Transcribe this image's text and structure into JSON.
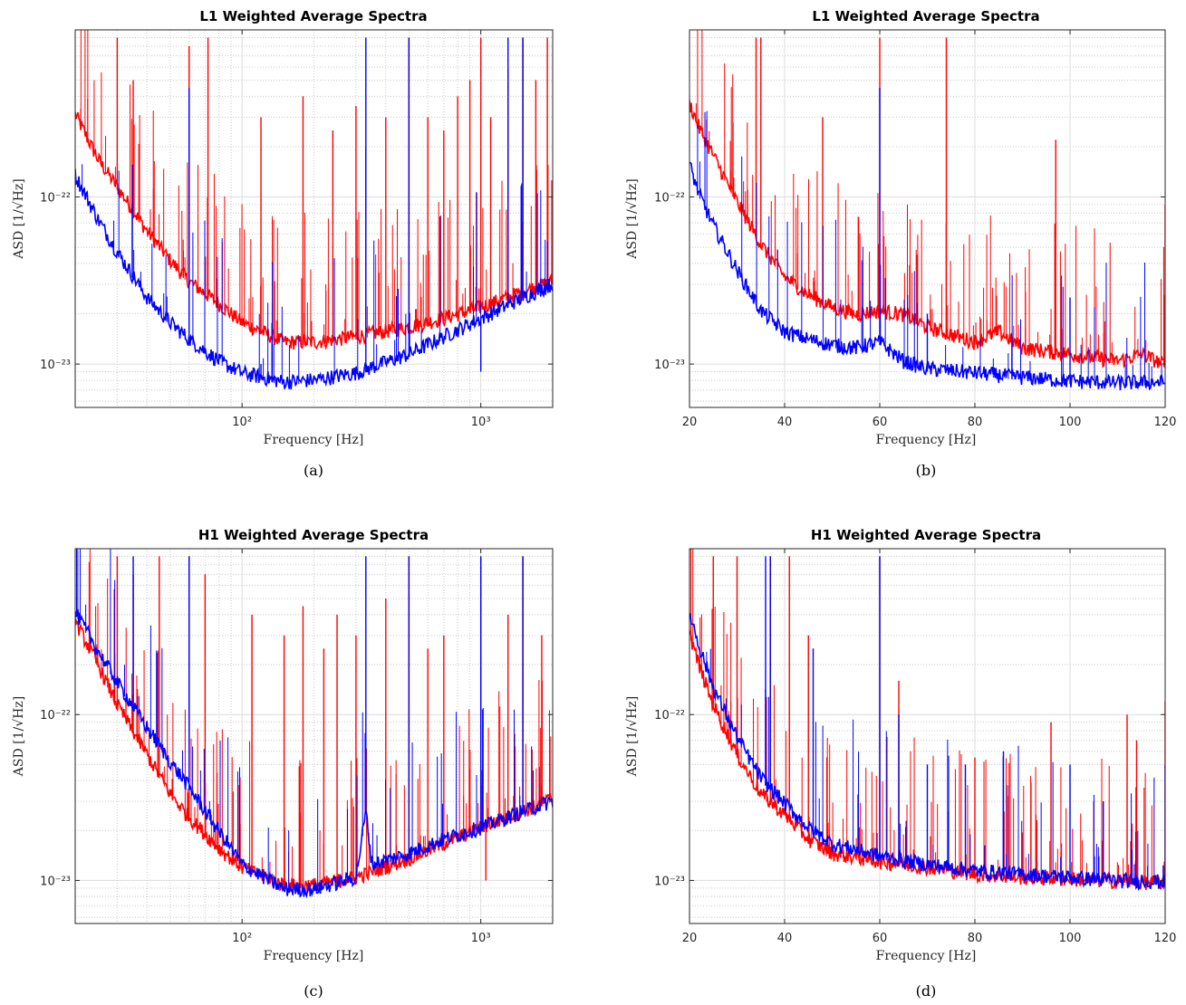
{
  "figure": {
    "colors": {
      "red": "#ff0000",
      "blue": "#0000ff",
      "grid_major": "#dcdcdc",
      "grid_minor": "#c8c8c8",
      "axis": "#262626"
    }
  },
  "chart_data": [
    {
      "type": "line",
      "title": "L1 Weighted Average Spectra",
      "xlabel": "Frequency [Hz]",
      "ylabel": "ASD [1/√Hz]",
      "caption": "(a)",
      "xscale": "log",
      "yscale": "log",
      "xlim": [
        20,
        2000
      ],
      "ylim": [
        5.5e-24,
        1e-21
      ],
      "xticks": [
        100,
        1000
      ],
      "xtick_labels": [
        "10²",
        "10³"
      ],
      "yticks": [
        1e-23,
        1e-22
      ],
      "ytick_labels": [
        "10⁻²³",
        "10⁻²²"
      ],
      "grid": true,
      "series": [
        {
          "color": "red",
          "x": [
            20,
            25,
            30,
            40,
            50,
            60,
            80,
            100,
            150,
            200,
            300,
            500,
            700,
            1000,
            1500,
            2000
          ],
          "y": [
            3e-22,
            1.6e-22,
            1.1e-22,
            6e-23,
            4e-23,
            3e-23,
            2.2e-23,
            1.7e-23,
            1.3e-23,
            1.3e-23,
            1.4e-23,
            1.6e-23,
            1.8e-23,
            2.1e-23,
            2.6e-23,
            3e-23
          ],
          "spikes": [
            [
              30,
              9e-22
            ],
            [
              35,
              5e-22
            ],
            [
              60,
              8e-22
            ],
            [
              72,
              9e-22
            ],
            [
              120,
              3e-22
            ],
            [
              180,
              4e-22
            ],
            [
              240,
              2.5e-22
            ],
            [
              300,
              3.5e-22
            ],
            [
              330,
              2e-22
            ],
            [
              400,
              3e-22
            ],
            [
              500,
              9e-22
            ],
            [
              600,
              3e-22
            ],
            [
              700,
              2.5e-22
            ],
            [
              800,
              4e-22
            ],
            [
              900,
              5e-22
            ],
            [
              1000,
              9e-22
            ],
            [
              1100,
              3e-22
            ],
            [
              1300,
              6e-22
            ],
            [
              1500,
              9e-22
            ],
            [
              1700,
              5e-22
            ],
            [
              1900,
              9e-22
            ]
          ]
        },
        {
          "color": "blue",
          "x": [
            20,
            25,
            30,
            40,
            50,
            60,
            80,
            100,
            150,
            200,
            300,
            500,
            700,
            1000,
            1500,
            2000
          ],
          "y": [
            1.3e-22,
            7e-23,
            4.5e-23,
            2.4e-23,
            1.7e-23,
            1.35e-23,
            1e-23,
            8.5e-24,
            7.5e-24,
            7.7e-24,
            8.5e-24,
            1.1e-23,
            1.4e-23,
            1.8e-23,
            2.4e-23,
            2.9e-23
          ],
          "spikes": [
            [
              60,
              4.5e-22
            ],
            [
              120,
              1e-23
            ],
            [
              330,
              9e-22
            ],
            [
              500,
              9e-22
            ],
            [
              1000,
              9e-24
            ],
            [
              1300,
              9e-22
            ],
            [
              1500,
              9e-22
            ]
          ]
        }
      ]
    },
    {
      "type": "line",
      "title": "L1 Weighted Average Spectra",
      "xlabel": "Frequency [Hz]",
      "ylabel": "ASD [1/√Hz]",
      "caption": "(b)",
      "xscale": "linear",
      "yscale": "log",
      "xlim": [
        20,
        120
      ],
      "ylim": [
        5.5e-24,
        1e-21
      ],
      "xticks": [
        20,
        40,
        60,
        80,
        100,
        120
      ],
      "xtick_labels": [
        "20",
        "40",
        "60",
        "80",
        "100",
        "120"
      ],
      "yticks": [
        1e-23,
        1e-22
      ],
      "ytick_labels": [
        "10⁻²³",
        "10⁻²²"
      ],
      "grid": true,
      "series": [
        {
          "color": "red",
          "x": [
            20,
            22,
            25,
            30,
            35,
            40,
            45,
            50,
            55,
            60,
            65,
            70,
            80,
            85,
            90,
            100,
            110,
            115,
            120
          ],
          "y": [
            3.5e-22,
            2.5e-22,
            1.7e-22,
            9e-23,
            5e-23,
            3.2e-23,
            2.5e-23,
            2.1e-23,
            1.9e-23,
            2e-23,
            1.9e-23,
            1.6e-23,
            1.3e-23,
            1.5e-23,
            1.2e-23,
            1.1e-23,
            1e-23,
            1.1e-23,
            9.5e-24
          ],
          "spikes": [
            [
              34,
              9e-22
            ],
            [
              35,
              9e-22
            ],
            [
              48,
              3e-22
            ],
            [
              60,
              9e-22
            ],
            [
              74,
              9e-22
            ],
            [
              97,
              2.2e-22
            ],
            [
              120,
              9e-23
            ]
          ]
        },
        {
          "color": "blue",
          "x": [
            20,
            22,
            25,
            30,
            35,
            40,
            45,
            50,
            55,
            60,
            65,
            70,
            80,
            90,
            100,
            110,
            120
          ],
          "y": [
            1.5e-22,
            1e-22,
            6.5e-23,
            3.5e-23,
            2e-23,
            1.5e-23,
            1.35e-23,
            1.25e-23,
            1.2e-23,
            1.3e-23,
            1e-23,
            9e-24,
            8.5e-24,
            8e-24,
            7.6e-24,
            7.4e-24,
            7.5e-24
          ],
          "spikes": [
            [
              60,
              4.5e-22
            ],
            [
              70,
              2e-23
            ],
            [
              100,
              2.5e-23
            ]
          ]
        }
      ]
    },
    {
      "type": "line",
      "title": "H1 Weighted Average Spectra",
      "xlabel": "Frequency [Hz]",
      "ylabel": "ASD [1/√Hz]",
      "caption": "(c)",
      "xscale": "log",
      "yscale": "log",
      "xlim": [
        20,
        2000
      ],
      "ylim": [
        5.5e-24,
        1e-21
      ],
      "xticks": [
        100,
        1000
      ],
      "xtick_labels": [
        "10²",
        "10³"
      ],
      "yticks": [
        1e-23,
        1e-22
      ],
      "ytick_labels": [
        "10⁻²³",
        "10⁻²²"
      ],
      "grid": true,
      "series": [
        {
          "color": "red",
          "x": [
            20,
            25,
            30,
            40,
            50,
            60,
            80,
            100,
            150,
            200,
            300,
            500,
            700,
            1000,
            1500,
            2000
          ],
          "y": [
            3.5e-22,
            1.9e-22,
            1.1e-22,
            5.5e-23,
            3.2e-23,
            2.3e-23,
            1.5e-23,
            1.15e-23,
            9e-24,
            9e-24,
            1e-23,
            1.3e-23,
            1.6e-23,
            2e-23,
            2.5e-23,
            3e-23
          ],
          "spikes": [
            [
              30,
              9e-22
            ],
            [
              35,
              7e-22
            ],
            [
              45,
              9e-22
            ],
            [
              60,
              9e-22
            ],
            [
              70,
              7e-22
            ],
            [
              110,
              4e-22
            ],
            [
              150,
              3e-22
            ],
            [
              180,
              4.5e-22
            ],
            [
              220,
              2.5e-22
            ],
            [
              250,
              4e-22
            ],
            [
              300,
              3e-22
            ],
            [
              400,
              5e-22
            ],
            [
              500,
              9e-22
            ],
            [
              600,
              2.5e-22
            ],
            [
              700,
              3e-22
            ],
            [
              1000,
              9e-22
            ],
            [
              1050,
              1e-23
            ],
            [
              1300,
              4e-22
            ],
            [
              1500,
              9e-22
            ],
            [
              1800,
              3e-22
            ]
          ]
        },
        {
          "color": "blue",
          "x": [
            20,
            25,
            30,
            40,
            50,
            60,
            80,
            100,
            150,
            200,
            300,
            330,
            350,
            500,
            700,
            1000,
            1500,
            2000
          ],
          "y": [
            4e-22,
            2.3e-22,
            1.5e-22,
            8e-23,
            5e-23,
            3.5e-23,
            1.9e-23,
            1.2e-23,
            8.5e-24,
            8.5e-24,
            1e-23,
            2.5e-23,
            1.2e-23,
            1.4e-23,
            1.7e-23,
            2e-23,
            2.5e-23,
            2.9e-23
          ],
          "spikes": [
            [
              35,
              9e-22
            ],
            [
              60,
              9e-22
            ],
            [
              330,
              9e-22
            ],
            [
              500,
              9e-22
            ],
            [
              1000,
              9e-22
            ],
            [
              1500,
              9e-22
            ]
          ]
        }
      ]
    },
    {
      "type": "line",
      "title": "H1 Weighted Average Spectra",
      "xlabel": "Frequency [Hz]",
      "ylabel": "ASD [1/√Hz]",
      "caption": "(d)",
      "xscale": "linear",
      "yscale": "log",
      "xlim": [
        20,
        120
      ],
      "ylim": [
        5.5e-24,
        1e-21
      ],
      "xticks": [
        20,
        40,
        60,
        80,
        100,
        120
      ],
      "xtick_labels": [
        "20",
        "40",
        "60",
        "80",
        "100",
        "120"
      ],
      "yticks": [
        1e-23,
        1e-22
      ],
      "ytick_labels": [
        "10⁻²³",
        "10⁻²²"
      ],
      "grid": true,
      "series": [
        {
          "color": "red",
          "x": [
            20,
            22,
            25,
            30,
            35,
            40,
            45,
            50,
            60,
            70,
            80,
            90,
            100,
            110,
            120
          ],
          "y": [
            3e-22,
            1.9e-22,
            1.1e-22,
            5.5e-23,
            3.2e-23,
            2.4e-23,
            1.7e-23,
            1.4e-23,
            1.25e-23,
            1.15e-23,
            1.05e-23,
            1e-23,
            9.8e-24,
            9.5e-24,
            9.3e-24
          ],
          "spikes": [
            [
              25,
              9e-22
            ],
            [
              30,
              9e-22
            ],
            [
              37,
              9e-22
            ],
            [
              41,
              9e-22
            ],
            [
              45,
              3e-22
            ],
            [
              60,
              9e-22
            ],
            [
              64,
              1.6e-22
            ],
            [
              80,
              5.5e-23
            ],
            [
              96,
              9e-23
            ],
            [
              105,
              3e-23
            ],
            [
              112,
              1e-22
            ],
            [
              114,
              7e-23
            ],
            [
              120,
              1.2e-22
            ]
          ]
        },
        {
          "color": "blue",
          "x": [
            20,
            22,
            25,
            30,
            35,
            40,
            45,
            50,
            60,
            70,
            80,
            90,
            100,
            110,
            120
          ],
          "y": [
            4e-22,
            2.5e-22,
            1.4e-22,
            7e-23,
            4e-23,
            2.8e-23,
            2e-23,
            1.6e-23,
            1.35e-23,
            1.2e-23,
            1.1e-23,
            1.05e-23,
            1e-23,
            9.6e-24,
            9.4e-24
          ],
          "spikes": [
            [
              36,
              9e-22
            ],
            [
              37,
              9e-22
            ],
            [
              46,
              2.5e-22
            ],
            [
              60,
              9e-22
            ],
            [
              64,
              1e-22
            ],
            [
              70,
              5e-23
            ],
            [
              78,
              5e-23
            ],
            [
              86,
              6e-23
            ],
            [
              100,
              5e-23
            ],
            [
              107,
              3e-23
            ],
            [
              120,
              5e-23
            ]
          ]
        }
      ]
    }
  ]
}
